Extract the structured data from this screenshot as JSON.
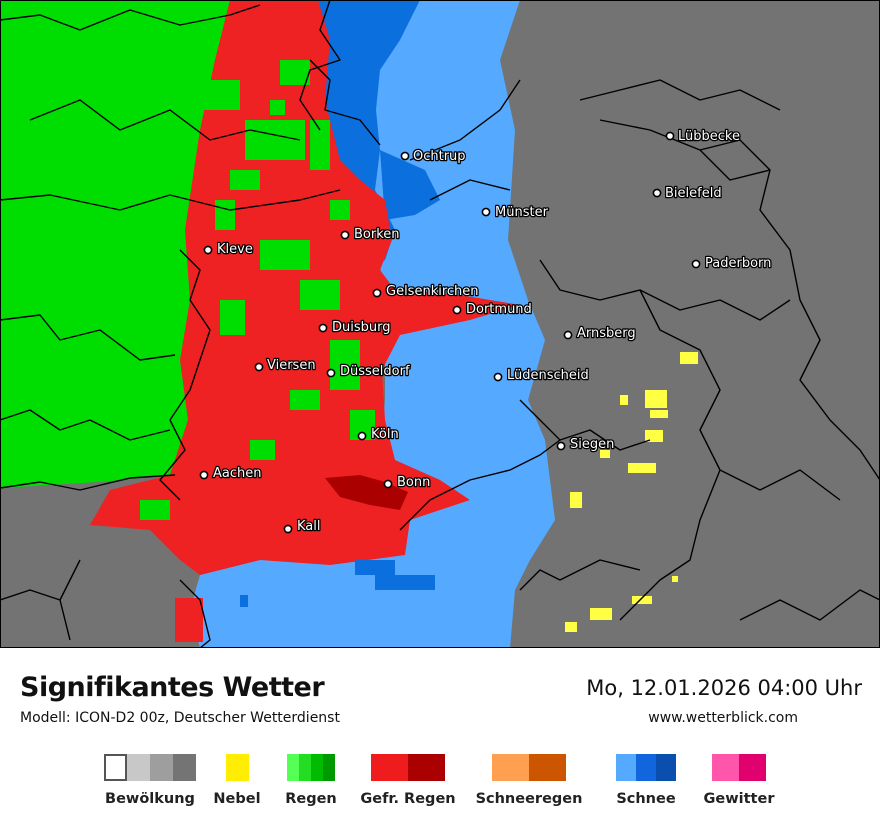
{
  "title": "Signifikantes Wetter",
  "model": "Modell: ICON-D2 00z, Deutscher Wetterdienst",
  "datetime": "Mo, 12.01.2026 04:00 Uhr",
  "website": "www.wetterblick.com",
  "colors": {
    "cloud": "#737373",
    "rain": "#00dd00",
    "freezing_rain": "#ee2222",
    "freezing_rain_heavy": "#aa0000",
    "snow_light": "#55aaff",
    "snow_medium": "#0b6fde",
    "fog": "#ffff44"
  },
  "cities": [
    {
      "name": "Lübbecke"
    },
    {
      "name": "Ochtrup"
    },
    {
      "name": "Bielefeld"
    },
    {
      "name": "Münster"
    },
    {
      "name": "Borken"
    },
    {
      "name": "Kleve"
    },
    {
      "name": "Paderborn"
    },
    {
      "name": "Gelsenkirchen"
    },
    {
      "name": "Dortmund"
    },
    {
      "name": "Duisburg"
    },
    {
      "name": "Arnsberg"
    },
    {
      "name": "Viersen"
    },
    {
      "name": "Düsseldorf"
    },
    {
      "name": "Lüdenscheid"
    },
    {
      "name": "Köln"
    },
    {
      "name": "Siegen"
    },
    {
      "name": "Aachen"
    },
    {
      "name": "Bonn"
    },
    {
      "name": "Kall"
    }
  ],
  "legend": [
    {
      "label": "Bewölkung",
      "colors": [
        "#ffffff",
        "#c8c8c8",
        "#9e9e9e",
        "#747474"
      ]
    },
    {
      "label": "Nebel",
      "colors": [
        "#ffee00"
      ]
    },
    {
      "label": "Regen",
      "colors": [
        "#55ff55",
        "#22dd22",
        "#00bb00",
        "#009900"
      ]
    },
    {
      "label": "Gefr. Regen",
      "colors": [
        "#ee1c1c",
        "#aa0000"
      ]
    },
    {
      "label": "Schneeregen",
      "colors": [
        "#ffa050",
        "#cc5500"
      ]
    },
    {
      "label": "Schnee",
      "colors": [
        "#55aaff",
        "#1166dd",
        "#0b4fae"
      ]
    },
    {
      "label": "Gewitter",
      "colors": [
        "#ff55aa",
        "#e0006e"
      ]
    }
  ]
}
